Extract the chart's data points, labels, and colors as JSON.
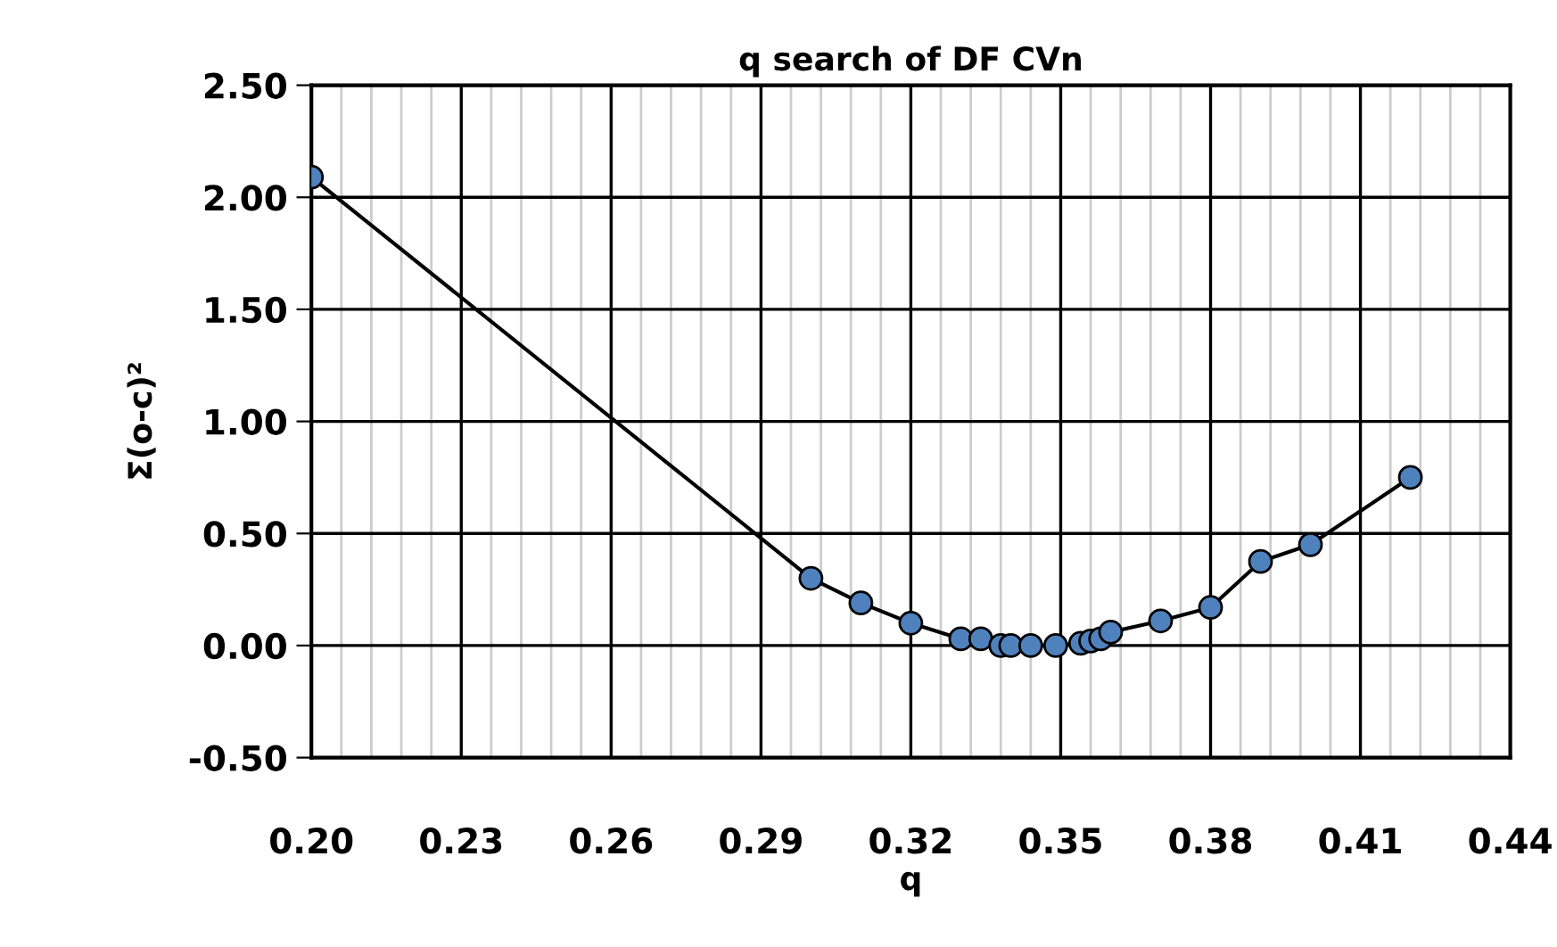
{
  "chart_data": {
    "type": "line",
    "title": "q search of DF CVn",
    "xlabel": "q",
    "ylabel": "Σ(o-c)²",
    "series": [
      {
        "color": "#4f81bd",
        "x": [
          0.2,
          0.3,
          0.31,
          0.32,
          0.33,
          0.334,
          0.338,
          0.34,
          0.344,
          0.349,
          0.354,
          0.356,
          0.358,
          0.36,
          0.37,
          0.38,
          0.39,
          0.4,
          0.42
        ],
        "values": [
          2.09,
          0.3,
          0.19,
          0.1,
          0.03,
          0.03,
          0.0,
          0.0,
          0.0,
          0.0,
          0.01,
          0.02,
          0.03,
          0.06,
          0.11,
          0.17,
          0.375,
          0.45,
          0.75
        ]
      }
    ],
    "marker": "circle",
    "line_style": "solid",
    "grid": true,
    "legend": false,
    "xlim": [
      0.2,
      0.44
    ],
    "xticks": [
      {
        "value": 0.2,
        "label": "0.20"
      },
      {
        "value": 0.206,
        "label": null
      },
      {
        "value": 0.212,
        "label": null
      },
      {
        "value": 0.218,
        "label": null
      },
      {
        "value": 0.224,
        "label": null
      },
      {
        "value": 0.23,
        "label": "0.23"
      },
      {
        "value": 0.236,
        "label": null
      },
      {
        "value": 0.242,
        "label": null
      },
      {
        "value": 0.248,
        "label": null
      },
      {
        "value": 0.254,
        "label": null
      },
      {
        "value": 0.26,
        "label": "0.26"
      },
      {
        "value": 0.266,
        "label": null
      },
      {
        "value": 0.272,
        "label": null
      },
      {
        "value": 0.278,
        "label": null
      },
      {
        "value": 0.284,
        "label": null
      },
      {
        "value": 0.29,
        "label": "0.29"
      },
      {
        "value": 0.296,
        "label": null
      },
      {
        "value": 0.302,
        "label": null
      },
      {
        "value": 0.308,
        "label": null
      },
      {
        "value": 0.314,
        "label": null
      },
      {
        "value": 0.32,
        "label": "0.32"
      },
      {
        "value": 0.326,
        "label": null
      },
      {
        "value": 0.332,
        "label": null
      },
      {
        "value": 0.338,
        "label": null
      },
      {
        "value": 0.344,
        "label": null
      },
      {
        "value": 0.35,
        "label": "0.35"
      },
      {
        "value": 0.356,
        "label": null
      },
      {
        "value": 0.362,
        "label": null
      },
      {
        "value": 0.368,
        "label": null
      },
      {
        "value": 0.374,
        "label": null
      },
      {
        "value": 0.38,
        "label": "0.38"
      },
      {
        "value": 0.386,
        "label": null
      },
      {
        "value": 0.392,
        "label": null
      },
      {
        "value": 0.398,
        "label": null
      },
      {
        "value": 0.404,
        "label": null
      },
      {
        "value": 0.41,
        "label": "0.41"
      },
      {
        "value": 0.416,
        "label": null
      },
      {
        "value": 0.422,
        "label": null
      },
      {
        "value": 0.428,
        "label": null
      },
      {
        "value": 0.434,
        "label": null
      },
      {
        "value": 0.44,
        "label": "0.44"
      }
    ],
    "ylim": [
      -0.5,
      2.5
    ],
    "yticks": [
      {
        "value": -0.5,
        "label": "-0.50"
      },
      {
        "value": 0.0,
        "label": "0.00"
      },
      {
        "value": 0.5,
        "label": "0.50"
      },
      {
        "value": 1.0,
        "label": "1.00"
      },
      {
        "value": 1.5,
        "label": "1.50"
      },
      {
        "value": 2.0,
        "label": "2.00"
      },
      {
        "value": 2.5,
        "label": "2.50"
      }
    ]
  }
}
